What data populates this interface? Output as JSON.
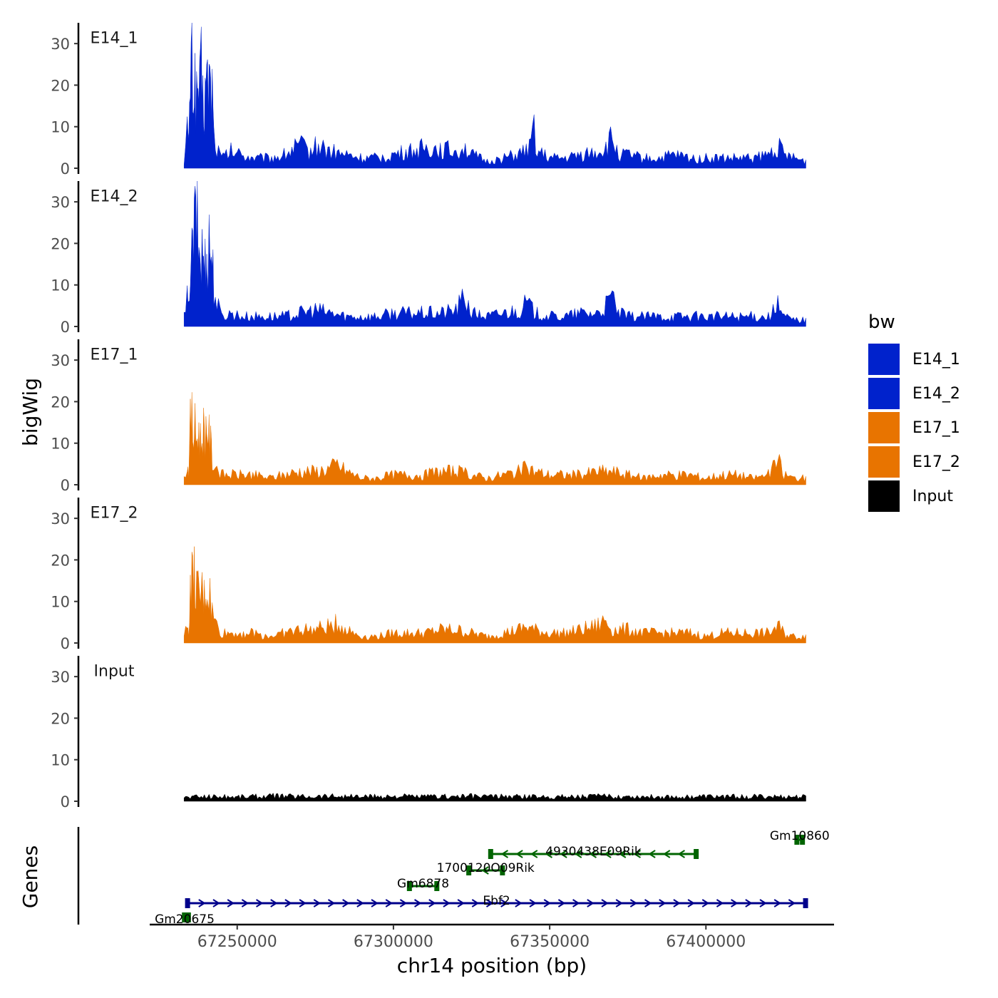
{
  "chart_data": {
    "type": "area",
    "title": "",
    "ylabel": "bigWig",
    "xlabel": "chr14 position (bp)",
    "ylim": [
      0,
      35
    ],
    "yticks": [
      0,
      10,
      20,
      30
    ],
    "xlim": [
      67222000,
      67441000
    ],
    "xticks": [
      67250000,
      67300000,
      67350000,
      67400000
    ],
    "xtick_labels": [
      "67250000",
      "67300000",
      "67350000",
      "67400000"
    ],
    "data_range": [
      67233000,
      67432000
    ],
    "legend_title": "bw",
    "legend_position": "right",
    "tracks": [
      {
        "name": "E14_1",
        "color": "#0022CC",
        "points": [
          [
            67233000,
            2
          ],
          [
            67234000,
            12
          ],
          [
            67234500,
            6
          ],
          [
            67235000,
            30
          ],
          [
            67235500,
            35
          ],
          [
            67236000,
            24
          ],
          [
            67236500,
            27
          ],
          [
            67237000,
            20
          ],
          [
            67237500,
            26
          ],
          [
            67238000,
            22
          ],
          [
            67238500,
            28
          ],
          [
            67239000,
            20
          ],
          [
            67239500,
            18
          ],
          [
            67240000,
            27
          ],
          [
            67240500,
            24
          ],
          [
            67241000,
            29
          ],
          [
            67241500,
            22
          ],
          [
            67242000,
            25
          ],
          [
            67242500,
            10
          ],
          [
            67243500,
            6
          ],
          [
            67245000,
            3
          ],
          [
            67248000,
            5
          ],
          [
            67252000,
            4
          ],
          [
            67256000,
            3
          ],
          [
            67260000,
            3
          ],
          [
            67265000,
            4
          ],
          [
            67270000,
            7
          ],
          [
            67273000,
            5
          ],
          [
            67276000,
            7
          ],
          [
            67280000,
            5
          ],
          [
            67285000,
            4
          ],
          [
            67290000,
            3
          ],
          [
            67295000,
            3
          ],
          [
            67300000,
            4
          ],
          [
            67305000,
            5
          ],
          [
            67310000,
            6
          ],
          [
            67315000,
            6
          ],
          [
            67320000,
            5
          ],
          [
            67322000,
            7
          ],
          [
            67325000,
            4
          ],
          [
            67330000,
            2
          ],
          [
            67335000,
            3
          ],
          [
            67340000,
            4
          ],
          [
            67344000,
            6
          ],
          [
            67345000,
            14
          ],
          [
            67346000,
            5
          ],
          [
            67350000,
            3
          ],
          [
            67355000,
            3
          ],
          [
            67360000,
            4
          ],
          [
            67365000,
            5
          ],
          [
            67368000,
            6
          ],
          [
            67370000,
            9
          ],
          [
            67372000,
            4
          ],
          [
            67375000,
            4
          ],
          [
            67380000,
            3
          ],
          [
            67385000,
            3
          ],
          [
            67390000,
            4
          ],
          [
            67395000,
            3
          ],
          [
            67400000,
            3
          ],
          [
            67405000,
            3
          ],
          [
            67410000,
            3
          ],
          [
            67415000,
            3
          ],
          [
            67420000,
            4
          ],
          [
            67423000,
            7
          ],
          [
            67425000,
            4
          ],
          [
            67428000,
            3
          ],
          [
            67432000,
            2
          ]
        ]
      },
      {
        "name": "E14_2",
        "color": "#0022CC",
        "points": [
          [
            67233000,
            3
          ],
          [
            67234000,
            8
          ],
          [
            67234500,
            5
          ],
          [
            67235000,
            22
          ],
          [
            67235500,
            20
          ],
          [
            67236000,
            27
          ],
          [
            67236500,
            30
          ],
          [
            67237000,
            34
          ],
          [
            67237500,
            25
          ],
          [
            67238000,
            22
          ],
          [
            67238500,
            20
          ],
          [
            67239000,
            23
          ],
          [
            67239500,
            18
          ],
          [
            67240000,
            20
          ],
          [
            67240500,
            22
          ],
          [
            67241000,
            26
          ],
          [
            67241500,
            24
          ],
          [
            67242000,
            20
          ],
          [
            67242500,
            13
          ],
          [
            67243500,
            7
          ],
          [
            67245000,
            3
          ],
          [
            67248000,
            4
          ],
          [
            67252000,
            3
          ],
          [
            67256000,
            3
          ],
          [
            67260000,
            3
          ],
          [
            67265000,
            3
          ],
          [
            67270000,
            4
          ],
          [
            67275000,
            5
          ],
          [
            67280000,
            4
          ],
          [
            67285000,
            3
          ],
          [
            67290000,
            3
          ],
          [
            67295000,
            3
          ],
          [
            67300000,
            4
          ],
          [
            67305000,
            4
          ],
          [
            67310000,
            4
          ],
          [
            67315000,
            4
          ],
          [
            67320000,
            5
          ],
          [
            67323000,
            9
          ],
          [
            67325000,
            4
          ],
          [
            67330000,
            3
          ],
          [
            67335000,
            4
          ],
          [
            67340000,
            5
          ],
          [
            67343000,
            7
          ],
          [
            67345000,
            4
          ],
          [
            67350000,
            3
          ],
          [
            67355000,
            3
          ],
          [
            67360000,
            4
          ],
          [
            67365000,
            4
          ],
          [
            67368000,
            6
          ],
          [
            67370000,
            9
          ],
          [
            67372000,
            4
          ],
          [
            67375000,
            3
          ],
          [
            67380000,
            3
          ],
          [
            67385000,
            3
          ],
          [
            67390000,
            3
          ],
          [
            67395000,
            3
          ],
          [
            67400000,
            3
          ],
          [
            67405000,
            3
          ],
          [
            67410000,
            3
          ],
          [
            67415000,
            3
          ],
          [
            67420000,
            3
          ],
          [
            67423000,
            6
          ],
          [
            67425000,
            3
          ],
          [
            67428000,
            2
          ],
          [
            67432000,
            2
          ]
        ]
      },
      {
        "name": "E17_1",
        "color": "#E87400",
        "points": [
          [
            67233000,
            2
          ],
          [
            67234000,
            6
          ],
          [
            67234500,
            4
          ],
          [
            67235000,
            17
          ],
          [
            67235500,
            19
          ],
          [
            67236000,
            15
          ],
          [
            67236500,
            16
          ],
          [
            67237000,
            13
          ],
          [
            67237500,
            17
          ],
          [
            67238000,
            14
          ],
          [
            67238500,
            12
          ],
          [
            67239000,
            18
          ],
          [
            67239500,
            15
          ],
          [
            67240000,
            17
          ],
          [
            67240500,
            19
          ],
          [
            67241000,
            14
          ],
          [
            67241500,
            12
          ],
          [
            67242000,
            8
          ],
          [
            67243000,
            6
          ],
          [
            67245000,
            3
          ],
          [
            67250000,
            3
          ],
          [
            67255000,
            3
          ],
          [
            67260000,
            2
          ],
          [
            67265000,
            3
          ],
          [
            67270000,
            4
          ],
          [
            67275000,
            4
          ],
          [
            67280000,
            5
          ],
          [
            67282000,
            6
          ],
          [
            67285000,
            4
          ],
          [
            67290000,
            2
          ],
          [
            67295000,
            2
          ],
          [
            67300000,
            3
          ],
          [
            67305000,
            3
          ],
          [
            67310000,
            3
          ],
          [
            67315000,
            4
          ],
          [
            67320000,
            4
          ],
          [
            67325000,
            3
          ],
          [
            67330000,
            2
          ],
          [
            67335000,
            3
          ],
          [
            67340000,
            4
          ],
          [
            67343000,
            5
          ],
          [
            67345000,
            4
          ],
          [
            67350000,
            3
          ],
          [
            67355000,
            3
          ],
          [
            67360000,
            3
          ],
          [
            67365000,
            4
          ],
          [
            67370000,
            4
          ],
          [
            67375000,
            3
          ],
          [
            67380000,
            2
          ],
          [
            67385000,
            3
          ],
          [
            67390000,
            3
          ],
          [
            67395000,
            3
          ],
          [
            67400000,
            2
          ],
          [
            67405000,
            3
          ],
          [
            67410000,
            3
          ],
          [
            67415000,
            2
          ],
          [
            67420000,
            3
          ],
          [
            67423000,
            7
          ],
          [
            67425000,
            3
          ],
          [
            67428000,
            2
          ],
          [
            67432000,
            2
          ]
        ]
      },
      {
        "name": "E17_2",
        "color": "#E87400",
        "points": [
          [
            67233000,
            2
          ],
          [
            67234000,
            5
          ],
          [
            67234500,
            4
          ],
          [
            67235000,
            15
          ],
          [
            67235500,
            19
          ],
          [
            67236000,
            18
          ],
          [
            67236500,
            20
          ],
          [
            67237000,
            16
          ],
          [
            67237500,
            14
          ],
          [
            67238000,
            12
          ],
          [
            67238500,
            16
          ],
          [
            67239000,
            14
          ],
          [
            67239500,
            13
          ],
          [
            67240000,
            17
          ],
          [
            67240500,
            14
          ],
          [
            67241000,
            16
          ],
          [
            67241500,
            12
          ],
          [
            67242000,
            9
          ],
          [
            67243000,
            6
          ],
          [
            67245000,
            3
          ],
          [
            67250000,
            3
          ],
          [
            67255000,
            3
          ],
          [
            67260000,
            2
          ],
          [
            67265000,
            3
          ],
          [
            67270000,
            4
          ],
          [
            67275000,
            4
          ],
          [
            67280000,
            5
          ],
          [
            67282000,
            6
          ],
          [
            67285000,
            4
          ],
          [
            67290000,
            2
          ],
          [
            67295000,
            2
          ],
          [
            67300000,
            3
          ],
          [
            67305000,
            3
          ],
          [
            67310000,
            3
          ],
          [
            67315000,
            4
          ],
          [
            67320000,
            4
          ],
          [
            67325000,
            3
          ],
          [
            67330000,
            2
          ],
          [
            67335000,
            3
          ],
          [
            67340000,
            4
          ],
          [
            67343000,
            5
          ],
          [
            67345000,
            4
          ],
          [
            67350000,
            3
          ],
          [
            67355000,
            3
          ],
          [
            67360000,
            4
          ],
          [
            67365000,
            5
          ],
          [
            67368000,
            7
          ],
          [
            67370000,
            4
          ],
          [
            67375000,
            4
          ],
          [
            67380000,
            3
          ],
          [
            67385000,
            3
          ],
          [
            67390000,
            3
          ],
          [
            67395000,
            3
          ],
          [
            67400000,
            2
          ],
          [
            67405000,
            3
          ],
          [
            67410000,
            3
          ],
          [
            67415000,
            3
          ],
          [
            67420000,
            3
          ],
          [
            67423000,
            5
          ],
          [
            67425000,
            3
          ],
          [
            67428000,
            2
          ],
          [
            67432000,
            2
          ]
        ]
      },
      {
        "name": "Input",
        "color": "#000000",
        "points": [
          [
            67233000,
            1.2
          ],
          [
            67240000,
            1.5
          ],
          [
            67250000,
            1.4
          ],
          [
            67260000,
            1.6
          ],
          [
            67270000,
            1.5
          ],
          [
            67280000,
            1.6
          ],
          [
            67290000,
            1.4
          ],
          [
            67300000,
            1.5
          ],
          [
            67310000,
            1.4
          ],
          [
            67320000,
            1.5
          ],
          [
            67330000,
            1.5
          ],
          [
            67340000,
            1.4
          ],
          [
            67350000,
            1.4
          ],
          [
            67360000,
            1.5
          ],
          [
            67370000,
            1.5
          ],
          [
            67380000,
            1.4
          ],
          [
            67390000,
            1.3
          ],
          [
            67400000,
            1.4
          ],
          [
            67410000,
            1.4
          ],
          [
            67420000,
            1.4
          ],
          [
            67432000,
            1.3
          ]
        ]
      }
    ],
    "genes_track": {
      "label": "Genes",
      "genes": [
        {
          "name": "Gm10860",
          "start": 67429000,
          "end": 67431000,
          "strand": "-",
          "row": 1,
          "color": "#006400"
        },
        {
          "name": "4930438E09Rik",
          "start": 67331000,
          "end": 67397000,
          "strand": "-",
          "row": 2,
          "color": "#006400"
        },
        {
          "name": "1700120O09Rik",
          "start": 67324000,
          "end": 67335000,
          "strand": "-",
          "row": 3,
          "color": "#006400"
        },
        {
          "name": "Gm6878",
          "start": 67305000,
          "end": 67314000,
          "strand": "-",
          "row": 4,
          "color": "#006400"
        },
        {
          "name": "Ebf2",
          "start": 67234000,
          "end": 67432000,
          "strand": "+",
          "row": 5,
          "color": "#00008B"
        },
        {
          "name": "Gm20675",
          "start": 67233000,
          "end": 67234500,
          "strand": "-",
          "row": 6,
          "color": "#006400"
        }
      ]
    }
  }
}
